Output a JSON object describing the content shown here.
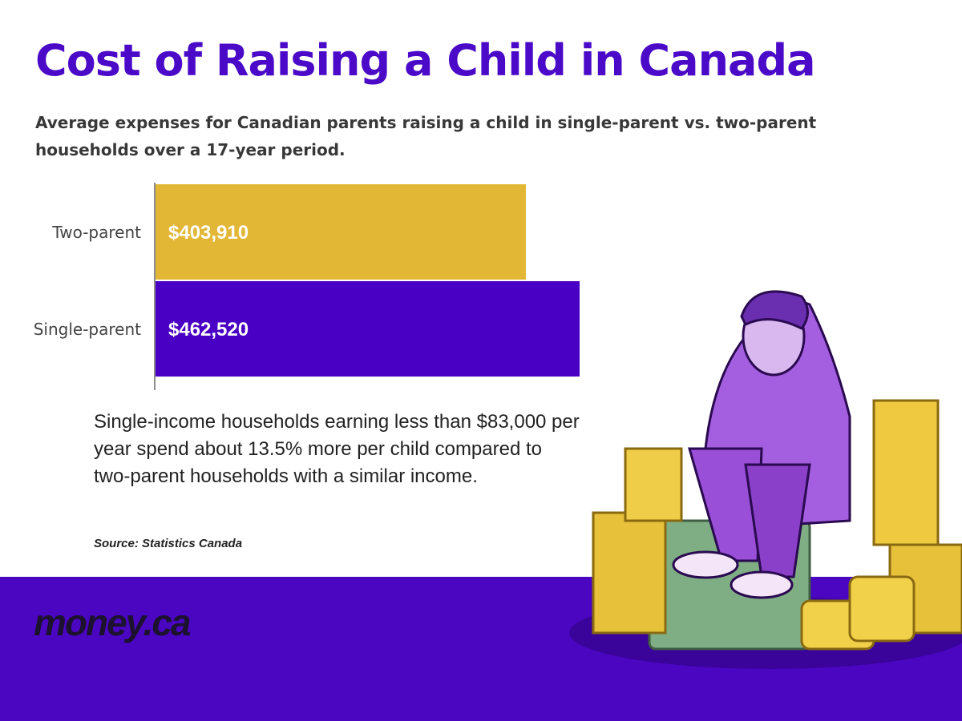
{
  "chart_data": {
    "type": "bar",
    "orientation": "horizontal",
    "title": "Cost of Raising a Child in Canada",
    "subtitle": "Average expenses for Canadian parents raising a child in single-parent vs. two-parent households over a 17-year period.",
    "categories": [
      "Two-parent",
      "Single-parent"
    ],
    "values": [
      403910,
      462520
    ],
    "value_labels": [
      "$403,910",
      "$462,520"
    ],
    "colors": [
      "#e2b736",
      "#4a00c4"
    ],
    "annotation": "Single-income households earning less than $83,000 per year spend about 13.5% more per child compared to two-parent households with a similar income.",
    "source": "Source: Statistics Canada",
    "brand": "money.ca"
  }
}
